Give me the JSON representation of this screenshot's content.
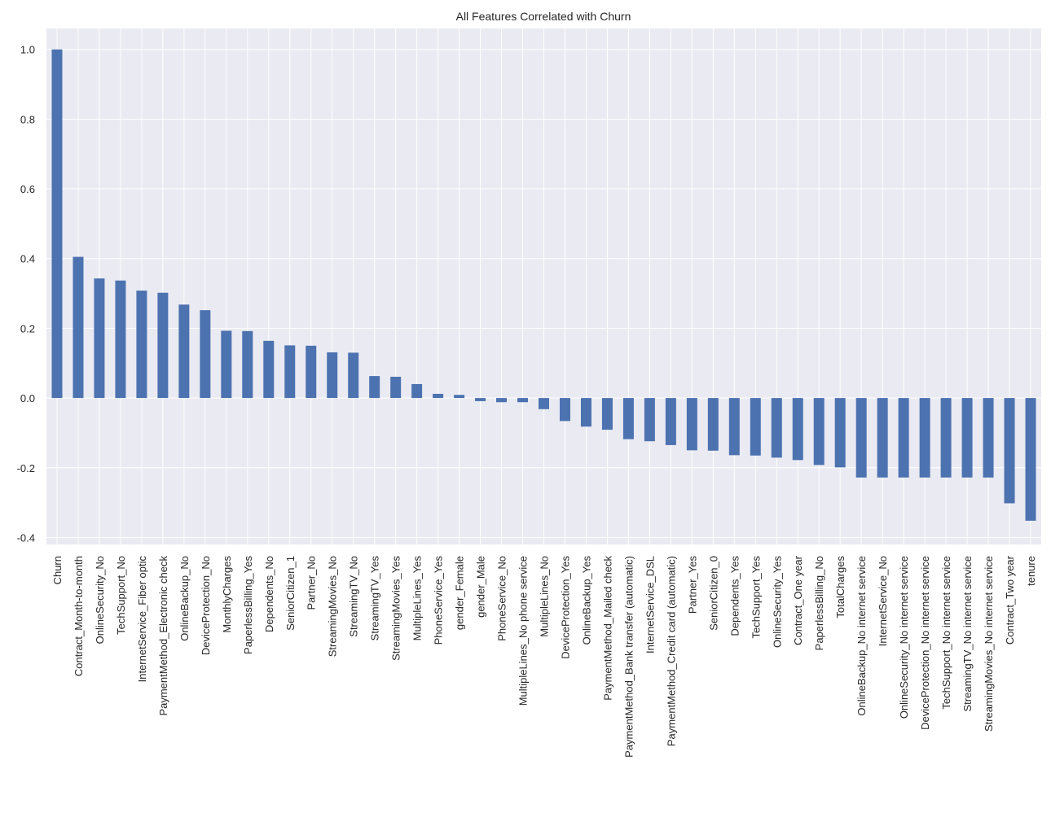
{
  "chart_data": {
    "type": "bar",
    "title": "All Features Correlated with Churn",
    "xlabel": "",
    "ylabel": "",
    "ylim": [
      -0.42,
      1.06
    ],
    "yticks": [
      -0.4,
      -0.2,
      0.0,
      0.2,
      0.4,
      0.6,
      0.8,
      1.0
    ],
    "ytick_labels": [
      "-0.4",
      "-0.2",
      "0.0",
      "0.2",
      "0.4",
      "0.6",
      "0.8",
      "1.0"
    ],
    "grid": true,
    "bar_color": "#4c72b0",
    "background_color": "#eaeaf2",
    "categories": [
      "Churn",
      "Contract_Month-to-month",
      "OnlineSecurity_No",
      "TechSupport_No",
      "InternetService_Fiber optic",
      "PaymentMethod_Electronic check",
      "OnlineBackup_No",
      "DeviceProtection_No",
      "MonthlyCharges",
      "PaperlessBilling_Yes",
      "Dependents_No",
      "SeniorCitizen_1",
      "Partner_No",
      "StreamingMovies_No",
      "StreamingTV_No",
      "StreamingTV_Yes",
      "StreamingMovies_Yes",
      "MultipleLines_Yes",
      "PhoneService_Yes",
      "gender_Female",
      "gender_Male",
      "PhoneService_No",
      "MultipleLines_No phone service",
      "MultipleLines_No",
      "DeviceProtection_Yes",
      "OnlineBackup_Yes",
      "PaymentMethod_Mailed check",
      "PaymentMethod_Bank transfer (automatic)",
      "InternetService_DSL",
      "PaymentMethod_Credit card (automatic)",
      "Partner_Yes",
      "SeniorCitizen_0",
      "Dependents_Yes",
      "TechSupport_Yes",
      "OnlineSecurity_Yes",
      "Contract_One year",
      "PaperlessBilling_No",
      "TotalCharges",
      "OnlineBackup_No internet service",
      "InternetService_No",
      "OnlineSecurity_No internet service",
      "DeviceProtection_No internet service",
      "TechSupport_No internet service",
      "StreamingTV_No internet service",
      "StreamingMovies_No internet service",
      "Contract_Two year",
      "tenure"
    ],
    "values": [
      1.0,
      0.405,
      0.343,
      0.337,
      0.308,
      0.302,
      0.268,
      0.252,
      0.193,
      0.192,
      0.164,
      0.151,
      0.15,
      0.131,
      0.13,
      0.063,
      0.061,
      0.04,
      0.012,
      0.009,
      -0.009,
      -0.012,
      -0.012,
      -0.032,
      -0.066,
      -0.082,
      -0.091,
      -0.118,
      -0.124,
      -0.135,
      -0.15,
      -0.151,
      -0.164,
      -0.165,
      -0.171,
      -0.178,
      -0.192,
      -0.199,
      -0.228,
      -0.228,
      -0.228,
      -0.228,
      -0.228,
      -0.228,
      -0.228,
      -0.302,
      -0.352
    ]
  }
}
